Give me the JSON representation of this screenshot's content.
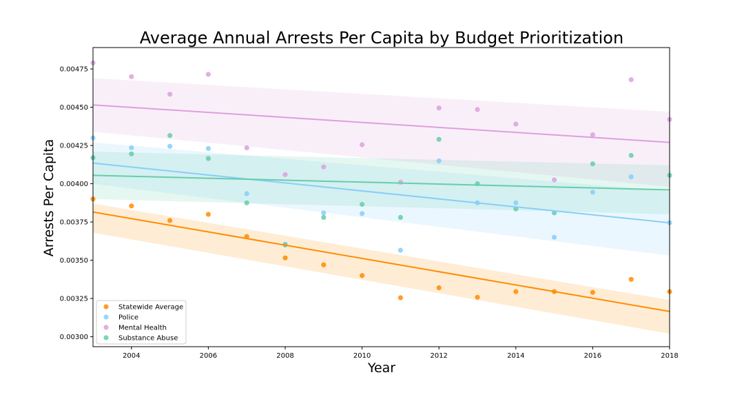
{
  "chart_data": {
    "type": "scatter",
    "title": "Average Annual Arrests Per Capita by Budget Prioritization",
    "xlabel": "Year",
    "ylabel": "Arrests Per Capita",
    "xlim": [
      2003,
      2018
    ],
    "ylim": [
      0.002935,
      0.00489
    ],
    "xticks": [
      2004,
      2006,
      2008,
      2010,
      2012,
      2014,
      2016,
      2018
    ],
    "yticks": [
      "0.00300",
      "0.00325",
      "0.00350",
      "0.00375",
      "0.00400",
      "0.00425",
      "0.00450",
      "0.00475"
    ],
    "grid": false,
    "legend_position": "lower-left",
    "x": [
      2003,
      2004,
      2005,
      2006,
      2007,
      2008,
      2009,
      2010,
      2011,
      2012,
      2013,
      2014,
      2015,
      2016,
      2017,
      2018
    ],
    "series": [
      {
        "name": "Statewide Average",
        "color": "#ff8c00",
        "values": [
          0.0039,
          0.003855,
          0.00376,
          0.0038,
          0.003655,
          0.003515,
          0.00347,
          0.0034,
          0.003255,
          0.00332,
          0.003258,
          0.003295,
          0.003295,
          0.00329,
          0.003375,
          0.003295
        ],
        "trend": [
          0.003815,
          0.003165
        ],
        "band": {
          "upper": [
            0.00387,
            0.00324
          ],
          "lower": [
            0.00368,
            0.00302
          ]
        }
      },
      {
        "name": "Police",
        "color": "#87cefa",
        "values": [
          0.0043,
          0.004235,
          0.004245,
          0.00423,
          0.003935,
          0.003605,
          0.00381,
          0.003805,
          0.003565,
          0.00415,
          0.003875,
          0.003875,
          0.00365,
          0.003945,
          0.004045,
          0.003745
        ],
        "trend": [
          0.004135,
          0.003745
        ],
        "band": {
          "upper": [
            0.00427,
            0.00395
          ],
          "lower": [
            0.004,
            0.00353
          ]
        }
      },
      {
        "name": "Mental Health",
        "color": "#dda0dd",
        "values": [
          0.00479,
          0.0047,
          0.004585,
          0.004715,
          0.004235,
          0.00406,
          0.00411,
          0.004255,
          0.00401,
          0.004495,
          0.004485,
          0.00439,
          0.004025,
          0.00432,
          0.00468,
          0.00442
        ],
        "trend": [
          0.004515,
          0.00427
        ],
        "band": {
          "upper": [
            0.00469,
            0.00447
          ],
          "lower": [
            0.00434,
            0.00398
          ]
        }
      },
      {
        "name": "Substance Abuse",
        "color": "#66cdaa",
        "values": [
          0.00417,
          0.004195,
          0.004315,
          0.004165,
          0.003875,
          0.0036,
          0.00378,
          0.003865,
          0.00378,
          0.00429,
          0.004,
          0.003835,
          0.00381,
          0.00413,
          0.004185,
          0.004055
        ],
        "trend": [
          0.004055,
          0.00396
        ],
        "band": {
          "upper": [
            0.00421,
            0.00412
          ],
          "lower": [
            0.0039,
            0.0038
          ]
        }
      }
    ]
  }
}
